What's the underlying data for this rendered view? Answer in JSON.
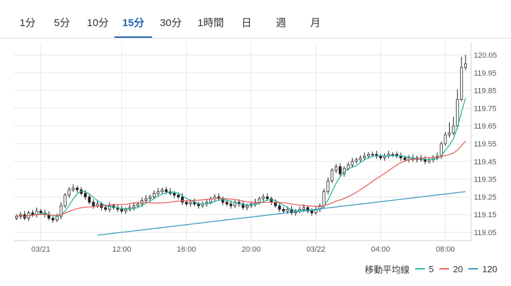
{
  "tabs": [
    {
      "label": "1分",
      "active": false
    },
    {
      "label": "5分",
      "active": false
    },
    {
      "label": "10分",
      "active": false
    },
    {
      "label": "15分",
      "active": true
    },
    {
      "label": "30分",
      "active": false
    },
    {
      "label": "1時間",
      "active": false
    },
    {
      "label": "日",
      "active": false
    },
    {
      "label": "週",
      "active": false
    },
    {
      "label": "月",
      "active": false
    }
  ],
  "legend": {
    "title": "移動平均線",
    "items": [
      {
        "label": "5",
        "color": "#26b5a1"
      },
      {
        "label": "20",
        "color": "#e8615f"
      },
      {
        "label": "120",
        "color": "#3a9bbf"
      }
    ]
  },
  "colors": {
    "accent": "#1f63ab",
    "candle": "#222222",
    "grid": "#e6e6e6"
  },
  "chart_data": {
    "type": "candlestick",
    "y_ticks": [
      "120.05",
      "119.95",
      "119.85",
      "119.75",
      "119.65",
      "119.55",
      "119.45",
      "119.35",
      "119.25",
      "119.15",
      "119.05"
    ],
    "ylim": [
      119.02,
      120.08
    ],
    "grid": true,
    "legend_position": "bottom-right",
    "x_ticks": [
      {
        "label": "03/21",
        "index": 6
      },
      {
        "label": "12:00",
        "index": 26
      },
      {
        "label": "16:00",
        "index": 42
      },
      {
        "label": "20:00",
        "index": 58
      },
      {
        "label": "03/22",
        "index": 74
      },
      {
        "label": "04:00",
        "index": 90
      },
      {
        "label": "08:00",
        "index": 106
      }
    ],
    "close": [
      119.14,
      119.15,
      119.13,
      119.16,
      119.15,
      119.17,
      119.16,
      119.15,
      119.13,
      119.12,
      119.14,
      119.2,
      119.26,
      119.29,
      119.3,
      119.29,
      119.27,
      119.25,
      119.22,
      119.2,
      119.21,
      119.19,
      119.18,
      119.2,
      119.19,
      119.18,
      119.17,
      119.18,
      119.19,
      119.2,
      119.21,
      119.23,
      119.24,
      119.25,
      119.27,
      119.28,
      119.29,
      119.28,
      119.27,
      119.26,
      119.25,
      119.22,
      119.21,
      119.22,
      119.21,
      119.2,
      119.21,
      119.22,
      119.24,
      119.25,
      119.24,
      119.22,
      119.21,
      119.2,
      119.22,
      119.21,
      119.19,
      119.2,
      119.21,
      119.22,
      119.24,
      119.25,
      119.24,
      119.22,
      119.2,
      119.18,
      119.17,
      119.18,
      119.16,
      119.17,
      119.18,
      119.19,
      119.17,
      119.16,
      119.18,
      119.2,
      119.28,
      119.34,
      119.4,
      119.42,
      119.38,
      119.41,
      119.43,
      119.45,
      119.46,
      119.47,
      119.48,
      119.49,
      119.49,
      119.48,
      119.47,
      119.48,
      119.49,
      119.49,
      119.48,
      119.47,
      119.46,
      119.47,
      119.46,
      119.47,
      119.46,
      119.45,
      119.46,
      119.47,
      119.48,
      119.55,
      119.6,
      119.61,
      119.65,
      119.8,
      119.98,
      120.0
    ]
  }
}
